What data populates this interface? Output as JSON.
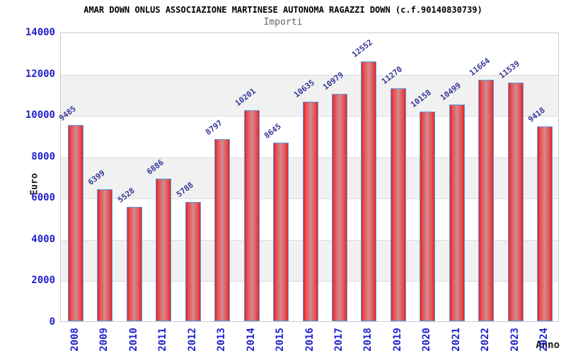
{
  "chart": {
    "title": "AMAR DOWN ONLUS ASSOCIAZIONE MARTINESE AUTONOMA RAGAZZI DOWN (c.f.90140830739)",
    "subtitle": "Importi",
    "ylabel": "Euro",
    "xlabel": "Anno"
  },
  "chart_data": {
    "type": "bar",
    "title": "AMAR DOWN ONLUS ASSOCIAZIONE MARTINESE AUTONOMA RAGAZZI DOWN (c.f.90140830739)",
    "subtitle": "Importi",
    "xlabel": "Anno",
    "ylabel": "Euro",
    "categories": [
      "2008",
      "2009",
      "2010",
      "2011",
      "2012",
      "2013",
      "2014",
      "2015",
      "2016",
      "2017",
      "2018",
      "2019",
      "2020",
      "2021",
      "2022",
      "2023",
      "2024"
    ],
    "values": [
      9485,
      6399,
      5528,
      6886,
      5788,
      8797,
      10201,
      8645,
      10635,
      10979,
      12552,
      11270,
      10158,
      10499,
      11664,
      11539,
      9418
    ],
    "ylim": [
      0,
      14000
    ],
    "ytick_step": 2000,
    "grid": "alternating-horizontal-bands",
    "legend": "none",
    "colors": {
      "bar_edge": "#e6202a",
      "bar_center": "#cf8d90",
      "bar_border": "#55a0e0",
      "axis_tick_label": "#2222cc",
      "value_label": "#36389a",
      "band": "#f1f1f1",
      "plot_border": "#cccccc",
      "title": "#000000",
      "subtitle": "#666666"
    }
  }
}
